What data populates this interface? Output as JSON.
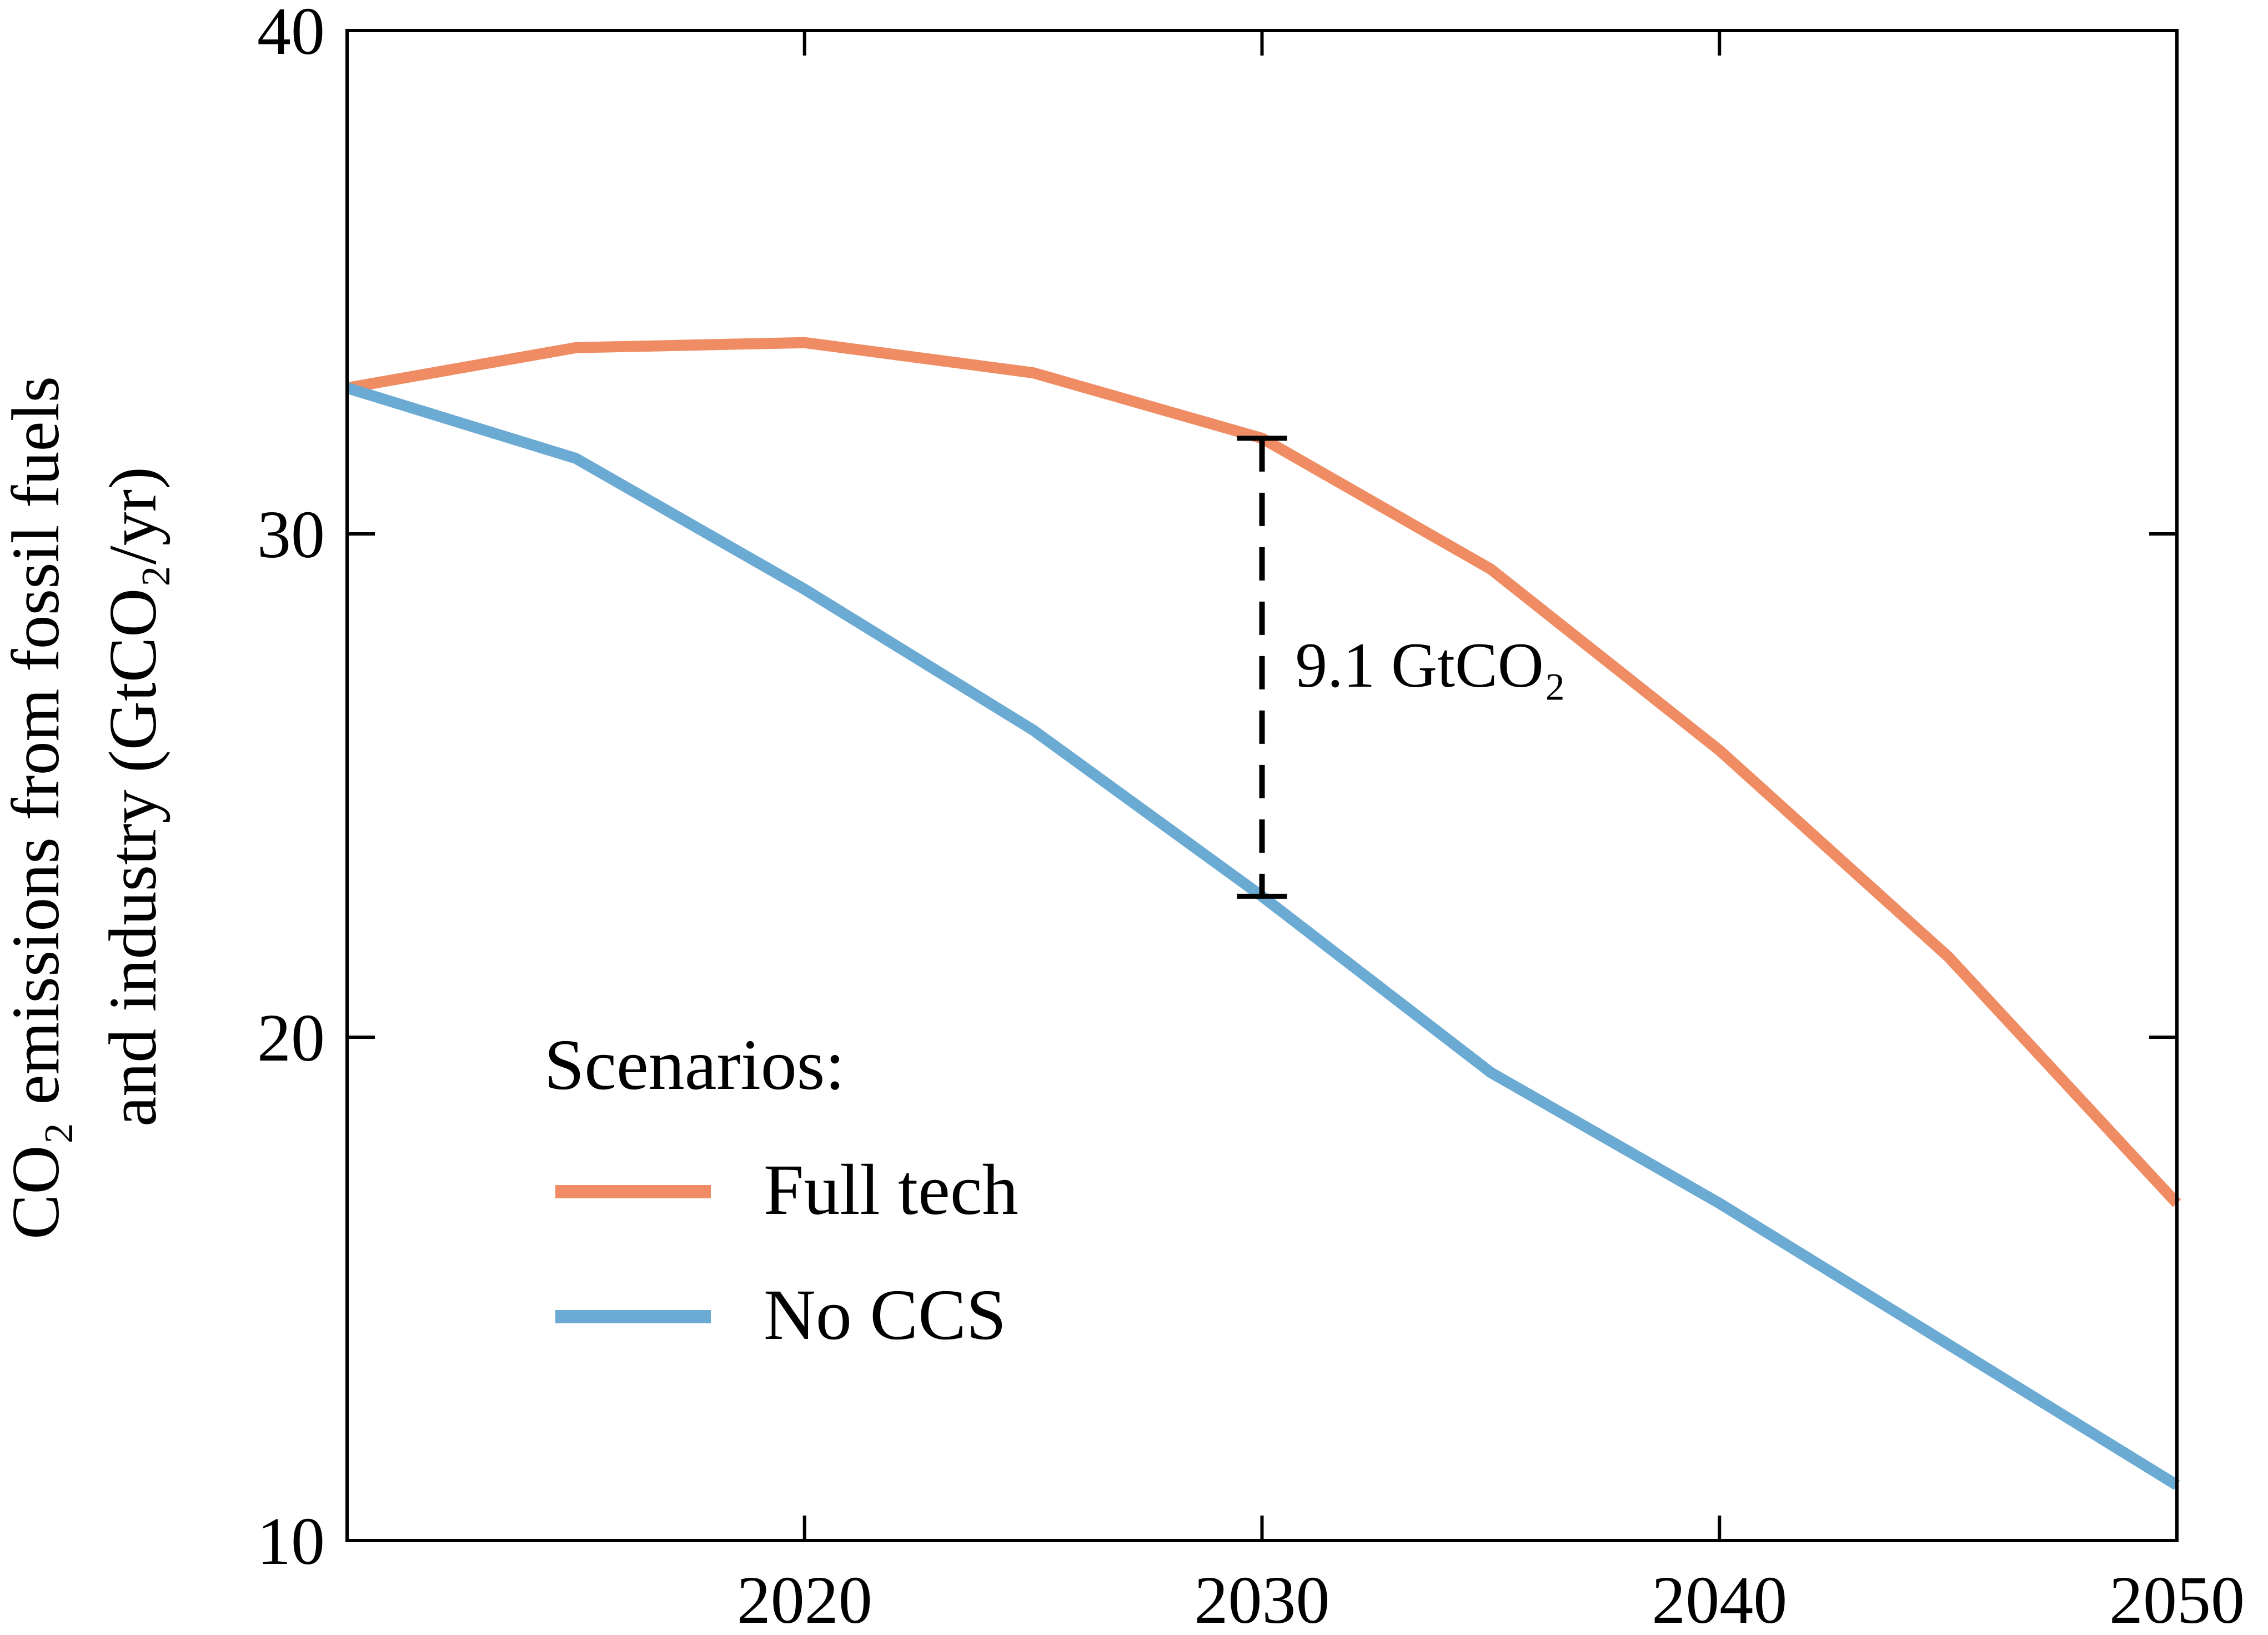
{
  "chart_data": {
    "type": "line",
    "title": "",
    "xlabel": "",
    "ylabel_line1": "CO₂ emissions from fossil fuels",
    "ylabel_line2": "and industry (GtCO₂/yr)",
    "xlim": [
      2010,
      2050
    ],
    "ylim": [
      10,
      40
    ],
    "xticks": [
      2020,
      2030,
      2040,
      2050
    ],
    "xtick_labels": [
      "2020",
      "2030",
      "2040",
      "2050"
    ],
    "yticks": [
      10,
      20,
      30,
      40
    ],
    "ytick_labels": [
      "10",
      "20",
      "30",
      "40"
    ],
    "grid": false,
    "legend": {
      "title": "Scenarios:",
      "placement": "lower-left"
    },
    "series": [
      {
        "name": "Full tech",
        "color": "#ef8c63",
        "x": [
          2010,
          2015,
          2020,
          2025,
          2030,
          2035,
          2040,
          2045,
          2050
        ],
        "values": [
          32.9,
          33.7,
          33.8,
          33.2,
          31.9,
          29.3,
          25.7,
          21.6,
          16.7
        ]
      },
      {
        "name": "No CCS",
        "color": "#6aaad3",
        "x": [
          2010,
          2015,
          2020,
          2025,
          2030,
          2035,
          2040,
          2045,
          2050
        ],
        "values": [
          32.9,
          31.5,
          28.9,
          26.1,
          22.8,
          19.3,
          16.7,
          13.9,
          11.1
        ]
      }
    ],
    "annotations": [
      {
        "type": "dashed-bracket",
        "x": 2030,
        "y_top": 31.9,
        "y_bottom": 22.8,
        "text": "9.1 GtCO₂",
        "color": "#000000"
      }
    ]
  }
}
